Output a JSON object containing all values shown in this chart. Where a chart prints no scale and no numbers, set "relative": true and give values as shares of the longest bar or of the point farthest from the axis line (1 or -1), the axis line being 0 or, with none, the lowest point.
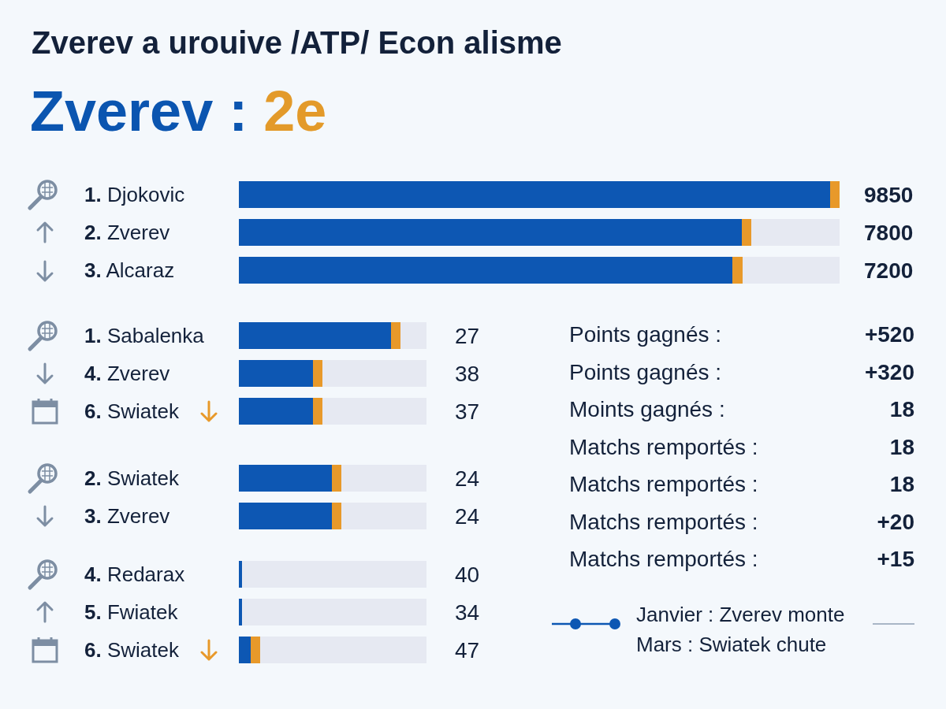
{
  "chart_data": [
    {
      "type": "bar",
      "title": "Zverev a urouive /ATP/ Econ alisme",
      "subtitle": "Zverev : 2e",
      "orientation": "horizontal",
      "stacked": true,
      "relative": true,
      "categories": [
        "1. Djokovic",
        "2. Zverev",
        "3. Alcaraz"
      ],
      "series": [
        {
          "color": "#0d57b3",
          "values": [
            0.984,
            0.837,
            0.822
          ]
        },
        {
          "color": "#e8992a",
          "values": [
            0.016,
            0.016,
            0.016
          ]
        },
        {
          "color": "#e6e9f2",
          "values": [
            0,
            0.147,
            0.162
          ]
        }
      ],
      "value_labels": [
        "9850",
        "7800",
        "7200"
      ]
    },
    {
      "type": "bar",
      "orientation": "horizontal",
      "stacked": true,
      "relative": true,
      "categories": [
        "1. Sabalenka",
        "4. Zverev",
        "6. Swiatek"
      ],
      "series": [
        {
          "color": "#0d57b3",
          "values": [
            0.811,
            0.395,
            0.395
          ]
        },
        {
          "color": "#e8992a",
          "values": [
            0.05,
            0.05,
            0.05
          ]
        },
        {
          "color": "#e6e9f2",
          "values": [
            0.139,
            0.555,
            0.555
          ]
        }
      ],
      "value_labels": [
        "27",
        "38",
        "37"
      ]
    },
    {
      "type": "bar",
      "orientation": "horizontal",
      "stacked": true,
      "relative": true,
      "categories": [
        "2. Swiatek",
        "3. Zverev"
      ],
      "series": [
        {
          "color": "#0d57b3",
          "values": [
            0.496,
            0.496
          ]
        },
        {
          "color": "#e8992a",
          "values": [
            0.05,
            0.05
          ]
        },
        {
          "color": "#e6e9f2",
          "values": [
            0.454,
            0.454
          ]
        }
      ],
      "value_labels": [
        "24",
        "24"
      ]
    },
    {
      "type": "bar",
      "orientation": "horizontal",
      "stacked": true,
      "relative": true,
      "categories": [
        "4. Redarax",
        "5. Fwiatek",
        "6. Swiatek"
      ],
      "series": [
        {
          "color": "#0d57b3",
          "values": [
            0.017,
            0.017,
            0.063
          ]
        },
        {
          "color": "#e8992a",
          "values": [
            0,
            0,
            0.05
          ]
        },
        {
          "color": "#e6e9f2",
          "values": [
            0.983,
            0.983,
            0.887
          ]
        }
      ],
      "value_labels": [
        "40",
        "34",
        "47"
      ]
    },
    {
      "type": "other",
      "categories": [
        "Points gagnés : +520",
        "Points gagnés : +320",
        "Moints gagnés : 18",
        "Matchs remportés : 18",
        "Matchs remportés : 18",
        "Matchs remportés : +20",
        "Matchs remportés : +15"
      ],
      "annotations": [
        "Janvier : Zverev monte",
        "Mars : Swiatek chute"
      ]
    }
  ]
}
